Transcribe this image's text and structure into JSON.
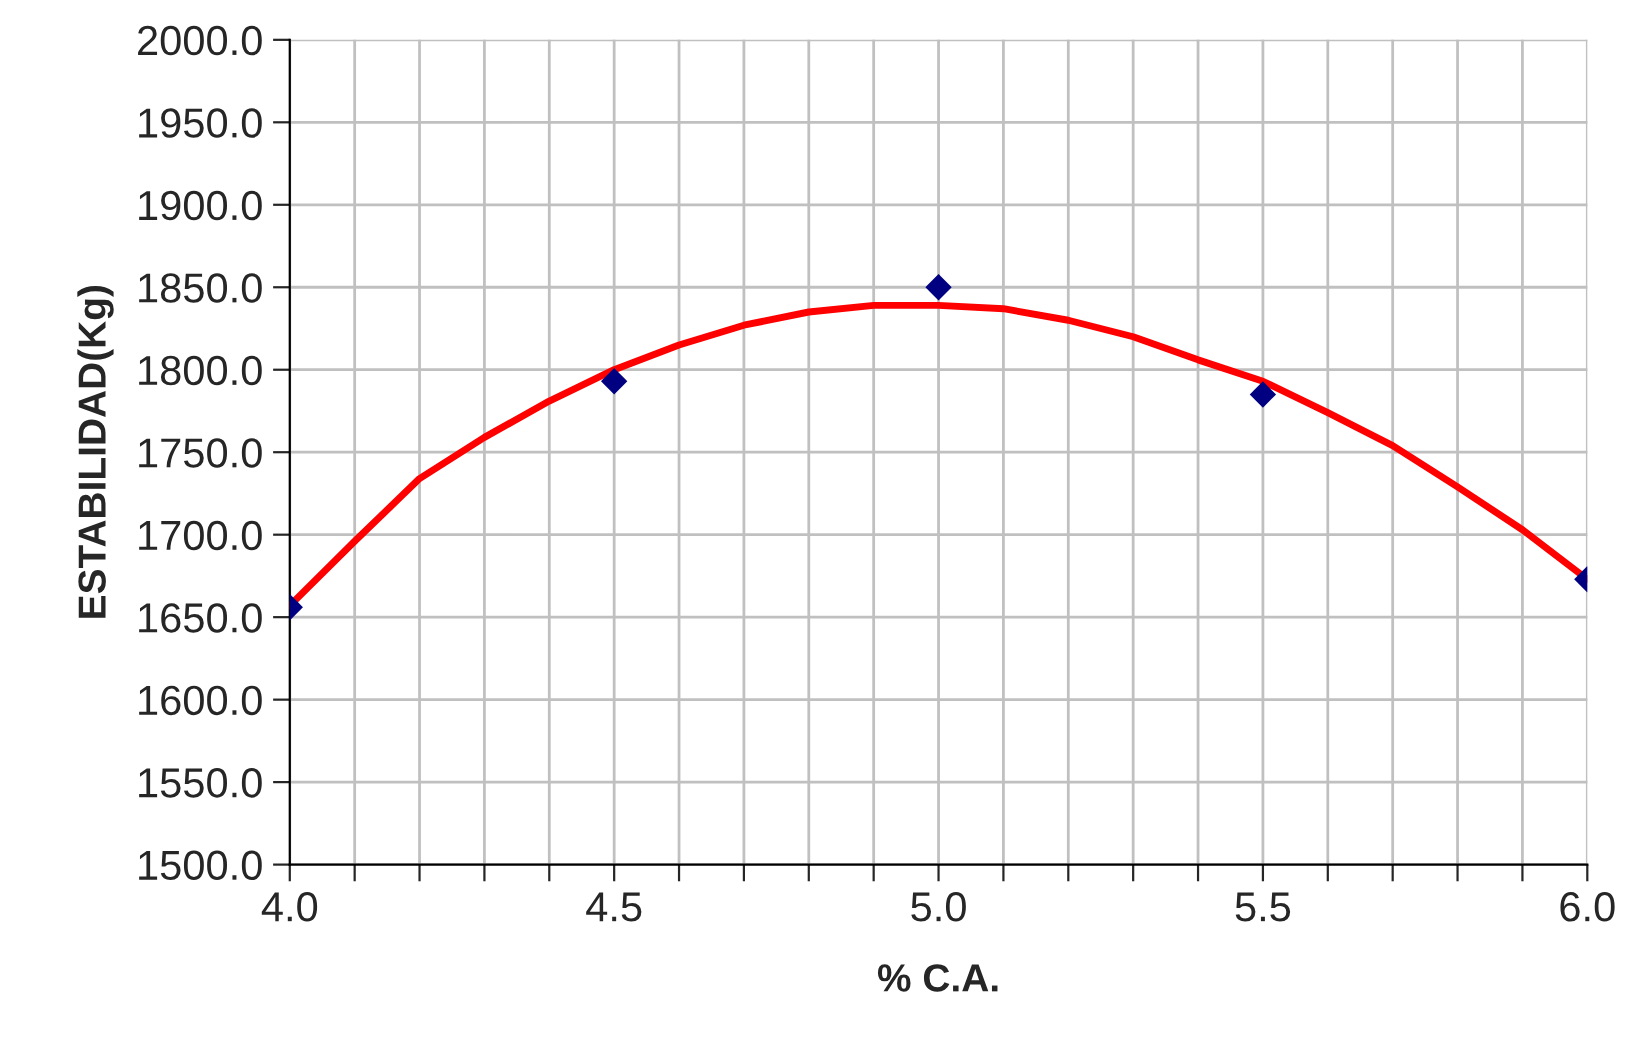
{
  "chart_data": {
    "type": "scatter",
    "xlabel": "% C.A.",
    "ylabel": "ESTABILIDAD(Kg)",
    "series": [
      {
        "color": "#000080",
        "marker": "diamond",
        "x": [
          4.0,
          4.5,
          5.0,
          5.5,
          6.0
        ],
        "values": [
          1656,
          1793,
          1850,
          1785,
          1673
        ]
      },
      {
        "type": "line",
        "color": "#ff0000",
        "marker": "none",
        "line_style": "solid",
        "x": [
          4.0,
          4.1,
          4.2,
          4.3,
          4.4,
          4.5,
          4.6,
          4.7,
          4.8,
          4.9,
          5.0,
          5.1,
          5.2,
          5.3,
          5.4,
          5.5,
          5.6,
          5.7,
          5.8,
          5.9,
          6.0
        ],
        "values": [
          1657,
          1696,
          1734,
          1759,
          1781,
          1800,
          1815,
          1827,
          1835,
          1839,
          1839,
          1837,
          1830,
          1820,
          1806,
          1793,
          1774,
          1754,
          1729,
          1703,
          1673
        ]
      }
    ],
    "xlim": [
      4.0,
      6.0
    ],
    "xticks": [
      {
        "value": 4.0,
        "label": "4.0"
      },
      {
        "value": 4.1,
        "label": null
      },
      {
        "value": 4.2,
        "label": null
      },
      {
        "value": 4.3,
        "label": null
      },
      {
        "value": 4.4,
        "label": null
      },
      {
        "value": 4.5,
        "label": "4.5"
      },
      {
        "value": 4.6,
        "label": null
      },
      {
        "value": 4.7,
        "label": null
      },
      {
        "value": 4.8,
        "label": null
      },
      {
        "value": 4.9,
        "label": null
      },
      {
        "value": 5.0,
        "label": "5.0"
      },
      {
        "value": 5.1,
        "label": null
      },
      {
        "value": 5.2,
        "label": null
      },
      {
        "value": 5.3,
        "label": null
      },
      {
        "value": 5.4,
        "label": null
      },
      {
        "value": 5.5,
        "label": "5.5"
      },
      {
        "value": 5.6,
        "label": null
      },
      {
        "value": 5.7,
        "label": null
      },
      {
        "value": 5.8,
        "label": null
      },
      {
        "value": 5.9,
        "label": null
      },
      {
        "value": 6.0,
        "label": "6.0"
      }
    ],
    "ylim": [
      1500,
      2000
    ],
    "yticks": [
      {
        "value": 1500,
        "label": "1500.0"
      },
      {
        "value": 1550,
        "label": "1550.0"
      },
      {
        "value": 1600,
        "label": "1600.0"
      },
      {
        "value": 1650,
        "label": "1650.0"
      },
      {
        "value": 1700,
        "label": "1700.0"
      },
      {
        "value": 1750,
        "label": "1750.0"
      },
      {
        "value": 1800,
        "label": "1800.0"
      },
      {
        "value": 1850,
        "label": "1850.0"
      },
      {
        "value": 1900,
        "label": "1900.0"
      },
      {
        "value": 1950,
        "label": "1950.0"
      },
      {
        "value": 2000,
        "label": "2000.0"
      }
    ],
    "grid": true
  }
}
